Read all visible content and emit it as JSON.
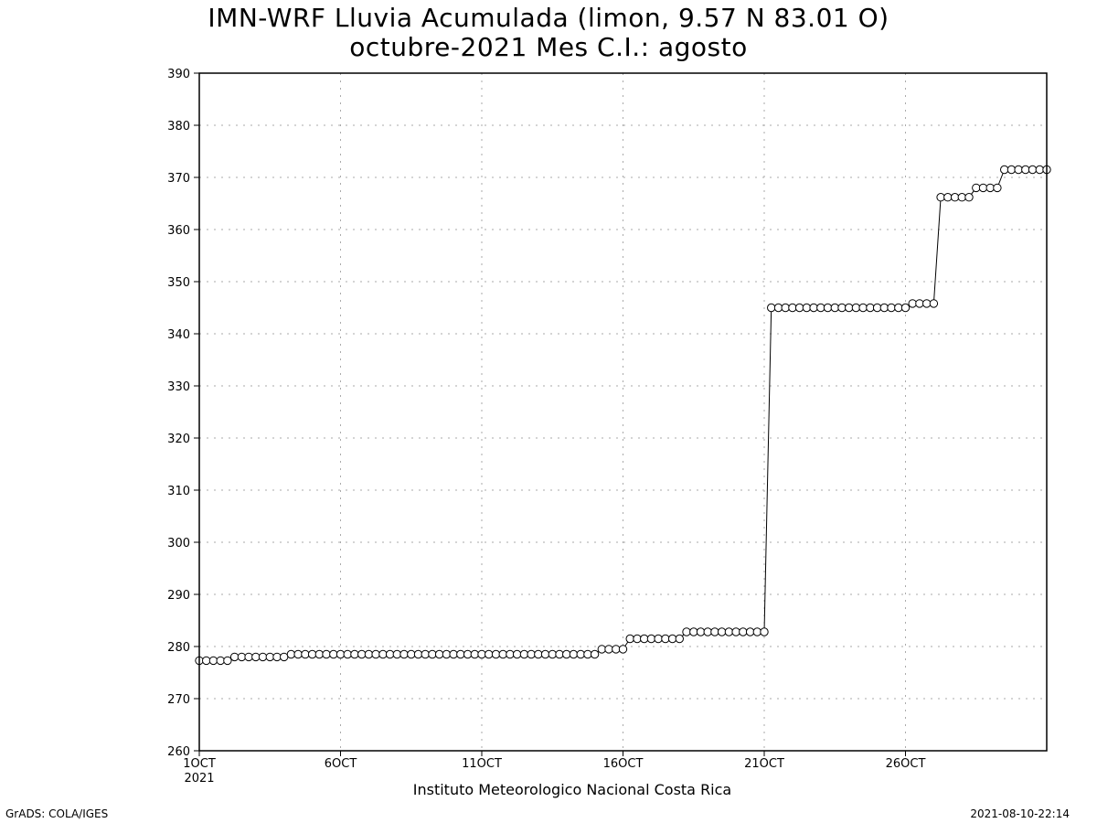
{
  "header": {
    "title_line1": "IMN-WRF  Lluvia Acumulada (limon, 9.57  N 83.01  O)",
    "title_line2": "octubre-2021 Mes C.I.: agosto"
  },
  "footer": {
    "credit": "GrADS: COLA/IGES",
    "timestamp": "2021-08-10-22:14"
  },
  "chart_data": {
    "type": "line",
    "title": "IMN-WRF  Lluvia Acumulada (limon, 9.57  N 83.01  O)",
    "subtitle": "octubre-2021 Mes C.I.: agosto",
    "xlabel": "Instituto Meteorologico Nacional Costa Rica",
    "ylabel": "",
    "x_unit": "6-hour steps from 1OCT2021",
    "xlim": [
      0,
      120
    ],
    "ylim": [
      260,
      390
    ],
    "yticks": [
      260,
      270,
      280,
      290,
      300,
      310,
      320,
      330,
      340,
      350,
      360,
      370,
      380,
      390
    ],
    "xticks": [
      {
        "x": 0,
        "label": "1OCT",
        "sublabel": "2021"
      },
      {
        "x": 20,
        "label": "6OCT"
      },
      {
        "x": 40,
        "label": "11OCT"
      },
      {
        "x": 60,
        "label": "16OCT"
      },
      {
        "x": 80,
        "label": "21OCT"
      },
      {
        "x": 100,
        "label": "26OCT"
      }
    ],
    "grid": true,
    "marker": "open-circle",
    "line_color": "#000000",
    "segments": [
      {
        "from": 0,
        "to": 4,
        "value": 277.3
      },
      {
        "from": 5,
        "to": 12,
        "value": 278.0
      },
      {
        "from": 13,
        "to": 56,
        "value": 278.5
      },
      {
        "from": 57,
        "to": 60,
        "value": 279.5
      },
      {
        "from": 61,
        "to": 68,
        "value": 281.5
      },
      {
        "from": 69,
        "to": 80,
        "value": 282.8
      },
      {
        "from": 81,
        "to": 100,
        "value": 345.0
      },
      {
        "from": 101,
        "to": 104,
        "value": 345.8
      },
      {
        "from": 105,
        "to": 109,
        "value": 366.2
      },
      {
        "from": 110,
        "to": 113,
        "value": 368.0
      },
      {
        "from": 114,
        "to": 120,
        "value": 371.5
      }
    ]
  }
}
